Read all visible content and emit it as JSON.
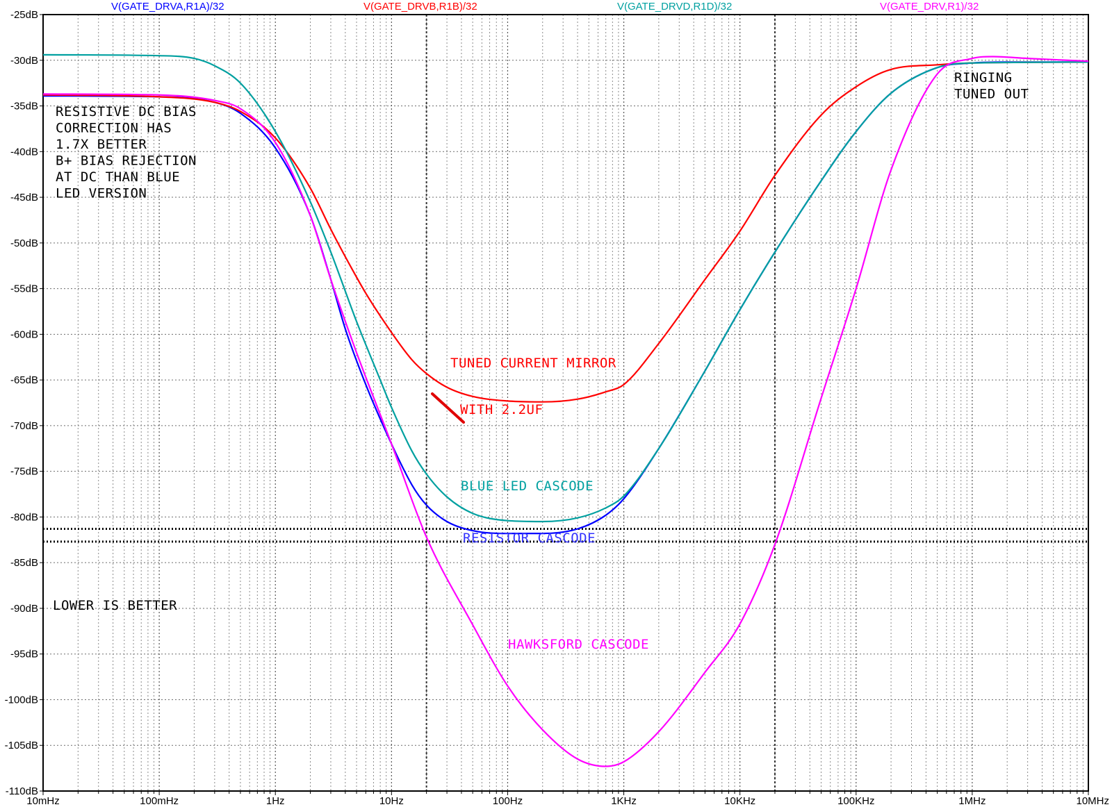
{
  "chart_data": {
    "type": "line",
    "xscale": "log",
    "xlim": [
      0.01,
      10000000
    ],
    "ylim": [
      -110,
      -25
    ],
    "grid": true,
    "y_ticks": [
      "-25dB",
      "-30dB",
      "-35dB",
      "-40dB",
      "-45dB",
      "-50dB",
      "-55dB",
      "-60dB",
      "-65dB",
      "-70dB",
      "-75dB",
      "-80dB",
      "-85dB",
      "-90dB",
      "-95dB",
      "-100dB",
      "-105dB",
      "-110dB"
    ],
    "y_tick_values": [
      -25,
      -30,
      -35,
      -40,
      -45,
      -50,
      -55,
      -60,
      -65,
      -70,
      -75,
      -80,
      -85,
      -90,
      -95,
      -100,
      -105,
      -110
    ],
    "x_ticks": [
      "10mHz",
      "100mHz",
      "1Hz",
      "10Hz",
      "100Hz",
      "1KHz",
      "10KHz",
      "100KHz",
      "1MHz",
      "10MHz"
    ],
    "x_tick_values": [
      0.01,
      0.1,
      1,
      10,
      100,
      1000,
      10000,
      100000,
      1000000,
      10000000
    ],
    "reference_lines": [
      -81.3,
      -82.7
    ],
    "series": [
      {
        "name": "V(GATE_DRVA,R1A)/32",
        "color": "#0000ff",
        "points": [
          [
            0.01,
            -33.9
          ],
          [
            0.1,
            -34.0
          ],
          [
            0.3,
            -34.6
          ],
          [
            0.5,
            -35.8
          ],
          [
            1,
            -39.6
          ],
          [
            2,
            -47
          ],
          [
            3,
            -54
          ],
          [
            4,
            -59.4
          ],
          [
            6,
            -65.5
          ],
          [
            10,
            -72
          ],
          [
            15,
            -76.5
          ],
          [
            20,
            -78.7
          ],
          [
            30,
            -80.5
          ],
          [
            50,
            -81.5
          ],
          [
            100,
            -81.8
          ],
          [
            200,
            -81.8
          ],
          [
            400,
            -81.3
          ],
          [
            700,
            -79.8
          ],
          [
            1000,
            -78
          ],
          [
            2000,
            -72.5
          ],
          [
            5000,
            -64
          ],
          [
            10000,
            -57.3
          ],
          [
            20000,
            -51
          ],
          [
            50000,
            -43.2
          ],
          [
            100000,
            -37.8
          ],
          [
            200000,
            -33.6
          ],
          [
            500000,
            -30.8
          ],
          [
            1000000,
            -30.3
          ],
          [
            2000000,
            -30.2
          ],
          [
            10000000,
            -30.2
          ]
        ]
      },
      {
        "name": "V(GATE_DRVB,R1B)/32",
        "color": "#ff0000",
        "points": [
          [
            0.01,
            -33.8
          ],
          [
            0.1,
            -34.0
          ],
          [
            0.3,
            -34.6
          ],
          [
            0.5,
            -35.6
          ],
          [
            1,
            -38.5
          ],
          [
            2,
            -44
          ],
          [
            3,
            -48.5
          ],
          [
            4,
            -51.5
          ],
          [
            6,
            -55.5
          ],
          [
            10,
            -59.8
          ],
          [
            15,
            -62.8
          ],
          [
            20,
            -64.3
          ],
          [
            30,
            -65.8
          ],
          [
            50,
            -66.8
          ],
          [
            100,
            -67.3
          ],
          [
            200,
            -67.4
          ],
          [
            400,
            -67.1
          ],
          [
            700,
            -66.3
          ],
          [
            1000,
            -65.5
          ],
          [
            2000,
            -61
          ],
          [
            5000,
            -54
          ],
          [
            10000,
            -48.7
          ],
          [
            20000,
            -42.6
          ],
          [
            50000,
            -36
          ],
          [
            100000,
            -32.9
          ],
          [
            200000,
            -31
          ],
          [
            500000,
            -30.5
          ],
          [
            1000000,
            -30.3
          ],
          [
            10000000,
            -30.2
          ]
        ]
      },
      {
        "name": "V(GATE_DRVD,R1D)/32",
        "color": "#00a0a0",
        "points": [
          [
            0.01,
            -29.4
          ],
          [
            0.1,
            -29.5
          ],
          [
            0.2,
            -29.8
          ],
          [
            0.3,
            -30.6
          ],
          [
            0.5,
            -32.5
          ],
          [
            1,
            -37.8
          ],
          [
            2,
            -45.5
          ],
          [
            3,
            -51
          ],
          [
            5,
            -58.6
          ],
          [
            8,
            -65
          ],
          [
            10,
            -68
          ],
          [
            15,
            -72.8
          ],
          [
            20,
            -75.3
          ],
          [
            30,
            -77.8
          ],
          [
            50,
            -79.6
          ],
          [
            100,
            -80.4
          ],
          [
            200,
            -80.5
          ],
          [
            400,
            -80.1
          ],
          [
            700,
            -79
          ],
          [
            1000,
            -77.7
          ],
          [
            2000,
            -72.5
          ],
          [
            5000,
            -64
          ],
          [
            10000,
            -57.3
          ],
          [
            20000,
            -51
          ],
          [
            50000,
            -43.2
          ],
          [
            100000,
            -37.8
          ],
          [
            200000,
            -33.6
          ],
          [
            500000,
            -30.8
          ],
          [
            1000000,
            -30.3
          ],
          [
            10000000,
            -30.2
          ]
        ]
      },
      {
        "name": "V(GATE_DRV,R1)/32",
        "color": "#ff00ff",
        "points": [
          [
            0.01,
            -33.7
          ],
          [
            0.1,
            -33.8
          ],
          [
            0.3,
            -34.4
          ],
          [
            0.5,
            -35.3
          ],
          [
            1,
            -39
          ],
          [
            2,
            -47
          ],
          [
            3,
            -54
          ],
          [
            5,
            -62
          ],
          [
            10,
            -72
          ],
          [
            20,
            -82.2
          ],
          [
            50,
            -91.8
          ],
          [
            100,
            -98.5
          ],
          [
            200,
            -103.3
          ],
          [
            400,
            -106.5
          ],
          [
            700,
            -107.3
          ],
          [
            1000,
            -106.8
          ],
          [
            2000,
            -103.5
          ],
          [
            5000,
            -97
          ],
          [
            10000,
            -91.7
          ],
          [
            20000,
            -83
          ],
          [
            50000,
            -67
          ],
          [
            100000,
            -55
          ],
          [
            200000,
            -42
          ],
          [
            500000,
            -31.5
          ],
          [
            1000000,
            -29.8
          ],
          [
            1500000,
            -29.6
          ],
          [
            3000000,
            -29.8
          ],
          [
            10000000,
            -30.1
          ]
        ]
      }
    ],
    "annotations": [
      {
        "lines": [
          "RESISTIVE DC BIAS",
          "CORRECTION HAS",
          "1.7X BETTER",
          "B+ BIAS REJECTION",
          "AT DC THAN BLUE",
          "LED VERSION"
        ],
        "color": "#000000"
      },
      {
        "lines": [
          "RINGING",
          "TUNED OUT"
        ],
        "color": "#000000"
      },
      {
        "lines": [
          "TUNED CURRENT MIRROR"
        ],
        "color": "#ff0000"
      },
      {
        "lines": [
          "WITH 2.2UF"
        ],
        "color": "#ff0000"
      },
      {
        "lines": [
          "BLUE LED CASCODE"
        ],
        "color": "#00a0a0"
      },
      {
        "lines": [
          "RESISTOR CASCODE"
        ],
        "color": "#3333ff"
      },
      {
        "lines": [
          "LOWER IS BETTER"
        ],
        "color": "#000000"
      },
      {
        "lines": [
          "HAWKSFORD CASCODE"
        ],
        "color": "#ff00ff"
      }
    ]
  }
}
